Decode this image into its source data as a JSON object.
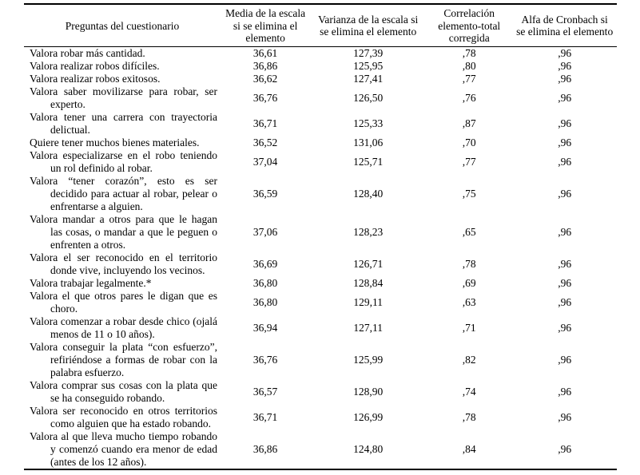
{
  "table": {
    "columns": [
      {
        "label": "Preguntas del cuestionario"
      },
      {
        "label": "Media de la escala si se elimina el elemento"
      },
      {
        "label": "Varianza de la escala si se elimina el elemento"
      },
      {
        "label": "Correlación elemento-total corregida"
      },
      {
        "label": "Alfa de Cronbach si se elimina el elemento"
      }
    ],
    "rows": [
      {
        "question": "Valora robar más cantidad.",
        "media": "36,61",
        "varianza": "127,39",
        "correlacion": ",78",
        "alfa": ",96"
      },
      {
        "question": "Valora realizar robos difíciles.",
        "media": "36,86",
        "varianza": "125,95",
        "correlacion": ",80",
        "alfa": ",96"
      },
      {
        "question": "Valora realizar robos exitosos.",
        "media": "36,62",
        "varianza": "127,41",
        "correlacion": ",77",
        "alfa": ",96"
      },
      {
        "question": "Valora saber movilizarse para robar, ser experto.",
        "media": "36,76",
        "varianza": "126,50",
        "correlacion": ",76",
        "alfa": ",96"
      },
      {
        "question": "Valora tener una carrera con trayectoria delictual.",
        "media": "36,71",
        "varianza": "125,33",
        "correlacion": ",87",
        "alfa": ",96"
      },
      {
        "question": "Quiere tener muchos bienes materiales.",
        "media": "36,52",
        "varianza": "131,06",
        "correlacion": ",70",
        "alfa": ",96"
      },
      {
        "question": "Valora especializarse en el robo teniendo un rol definido al robar.",
        "media": "37,04",
        "varianza": "125,71",
        "correlacion": ",77",
        "alfa": ",96"
      },
      {
        "question": "Valora “tener corazón”, esto es ser decidido para actuar al robar, pelear o enfrentarse a alguien.",
        "media": "36,59",
        "varianza": "128,40",
        "correlacion": ",75",
        "alfa": ",96"
      },
      {
        "question": "Valora mandar a otros para que le hagan las cosas, o mandar a que le peguen o enfrenten a otros.",
        "media": "37,06",
        "varianza": "128,23",
        "correlacion": ",65",
        "alfa": ",96"
      },
      {
        "question": "Valora el ser reconocido en el territorio donde vive, incluyendo los vecinos.",
        "media": "36,69",
        "varianza": "126,71",
        "correlacion": ",78",
        "alfa": ",96"
      },
      {
        "question": "Valora trabajar legalmente.*",
        "media": "36,80",
        "varianza": "128,84",
        "correlacion": ",69",
        "alfa": ",96"
      },
      {
        "question": "Valora el que otros pares le digan que es choro.",
        "media": "36,80",
        "varianza": "129,11",
        "correlacion": ",63",
        "alfa": ",96"
      },
      {
        "question": "Valora comenzar a robar desde chico (ojalá menos de 11 o 10 años).",
        "media": "36,94",
        "varianza": "127,11",
        "correlacion": ",71",
        "alfa": ",96"
      },
      {
        "question": "Valora conseguir la plata “con esfuerzo”, refiriéndose a formas de robar con la palabra esfuerzo.",
        "media": "36,76",
        "varianza": "125,99",
        "correlacion": ",82",
        "alfa": ",96"
      },
      {
        "question": "Valora comprar sus cosas con la plata que se ha conseguido robando.",
        "media": "36,57",
        "varianza": "128,90",
        "correlacion": ",74",
        "alfa": ",96"
      },
      {
        "question": "Valora ser reconocido en otros territorios como alguien que ha estado robando.",
        "media": "36,71",
        "varianza": "126,99",
        "correlacion": ",78",
        "alfa": ",96"
      },
      {
        "question": "Valora al que lleva mucho tiempo robando y comenzó cuando era menor de edad (antes de los 12 años).",
        "media": "36,86",
        "varianza": "124,80",
        "correlacion": ",84",
        "alfa": ",96"
      }
    ]
  }
}
